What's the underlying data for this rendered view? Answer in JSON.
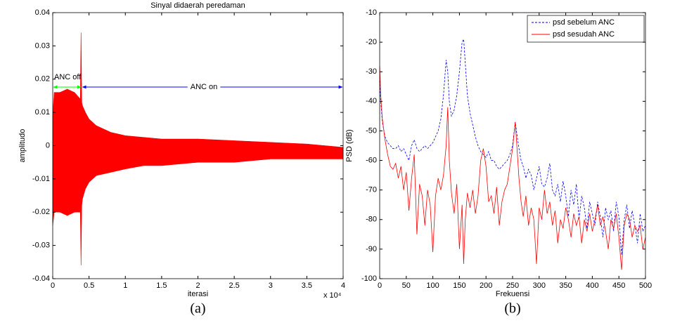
{
  "chart_data": [
    {
      "type": "band",
      "title": "Sinyal didaerah peredaman",
      "x_label": "iterasi",
      "y_label": "amplitudo",
      "x_multiplier": "x 10⁴",
      "caption": "(a)",
      "color": "#ff0000",
      "x": [
        0,
        0.02,
        0.1,
        0.2,
        0.3,
        0.38,
        0.39,
        0.4,
        0.41,
        0.45,
        0.5,
        0.6,
        0.8,
        1.0,
        1.25,
        1.5,
        2,
        2.5,
        3,
        3.5,
        4
      ],
      "upper": [
        0.009,
        0.016,
        0.016,
        0.017,
        0.016,
        0.014,
        0.034,
        0.013,
        0.012,
        0.01,
        0.008,
        0.006,
        0.004,
        0.003,
        0.0025,
        0.002,
        0.002,
        0.0015,
        0.001,
        0.0005,
        -0.0005
      ],
      "lower": [
        -0.024,
        -0.02,
        -0.02,
        -0.021,
        -0.02,
        -0.02,
        -0.036,
        -0.018,
        -0.016,
        -0.013,
        -0.011,
        -0.009,
        -0.008,
        -0.007,
        -0.006,
        -0.006,
        -0.005,
        -0.005,
        -0.004,
        -0.004,
        -0.004
      ],
      "annotations": [
        {
          "text": "ANC off",
          "color": "#00ff00"
        },
        {
          "text": "ANC on",
          "color": "#0000ff"
        }
      ],
      "xlim": [
        0,
        4
      ],
      "xticks": [
        0,
        0.5,
        1,
        1.5,
        2,
        2.5,
        3,
        3.5,
        4
      ],
      "ylim": [
        -0.04,
        0.04
      ],
      "yticks": [
        -0.04,
        -0.03,
        -0.02,
        -0.01,
        0,
        0.01,
        0.02,
        0.03,
        0.04
      ]
    },
    {
      "type": "line",
      "x_label": "Frekuensi",
      "y_label": "PSD (dB)",
      "caption": "(b)",
      "legend": "upper right",
      "x": [
        0,
        2,
        5,
        10,
        15,
        20,
        25,
        30,
        35,
        40,
        45,
        50,
        55,
        60,
        65,
        70,
        75,
        80,
        85,
        90,
        95,
        100,
        105,
        110,
        115,
        120,
        125,
        128,
        131,
        135,
        140,
        145,
        150,
        155,
        158,
        161,
        165,
        170,
        175,
        180,
        185,
        190,
        195,
        200,
        205,
        210,
        215,
        220,
        225,
        230,
        235,
        240,
        245,
        250,
        255,
        258,
        262,
        266,
        270,
        275,
        280,
        285,
        290,
        295,
        300,
        305,
        310,
        315,
        320,
        325,
        330,
        335,
        340,
        345,
        350,
        355,
        360,
        365,
        370,
        375,
        380,
        385,
        390,
        395,
        400,
        405,
        410,
        415,
        420,
        425,
        430,
        435,
        440,
        445,
        450,
        455,
        460,
        465,
        470,
        475,
        480,
        485,
        490,
        495,
        500
      ],
      "series": [
        {
          "name": "psd sebelum ANC",
          "color": "#0000ff",
          "linestyle": "dashed",
          "values": [
            -33,
            -40,
            -47,
            -52,
            -54,
            -55,
            -56,
            -56,
            -55,
            -57,
            -56,
            -58,
            -60,
            -55,
            -53,
            -56,
            -57,
            -56,
            -55,
            -56,
            -55,
            -54,
            -52,
            -50,
            -46,
            -38,
            -26,
            -30,
            -40,
            -45,
            -43,
            -38,
            -30,
            -20,
            -19,
            -27,
            -38,
            -44,
            -48,
            -52,
            -55,
            -57,
            -58,
            -59,
            -57,
            -60,
            -60,
            -62,
            -63,
            -62,
            -61,
            -60,
            -58,
            -55,
            -47,
            -51,
            -56,
            -60,
            -62,
            -66,
            -63,
            -65,
            -70,
            -66,
            -62,
            -68,
            -69,
            -66,
            -61,
            -70,
            -72,
            -68,
            -74,
            -67,
            -72,
            -79,
            -70,
            -75,
            -68,
            -80,
            -72,
            -76,
            -83,
            -74,
            -78,
            -82,
            -74,
            -79,
            -86,
            -76,
            -80,
            -77,
            -84,
            -74,
            -79,
            -92,
            -80,
            -75,
            -83,
            -77,
            -82,
            -88,
            -78,
            -84,
            -82
          ]
        },
        {
          "name": "psd sesudah ANC",
          "color": "#ff0000",
          "linestyle": "solid",
          "values": [
            -28,
            -38,
            -46,
            -53,
            -58,
            -62,
            -63,
            -61,
            -66,
            -62,
            -70,
            -64,
            -77,
            -66,
            -58,
            -85,
            -68,
            -72,
            -82,
            -70,
            -75,
            -91,
            -72,
            -66,
            -70,
            -65,
            -55,
            -42,
            -60,
            -71,
            -78,
            -68,
            -90,
            -75,
            -95,
            -80,
            -71,
            -76,
            -70,
            -78,
            -72,
            -60,
            -56,
            -62,
            -74,
            -72,
            -78,
            -69,
            -82,
            -74,
            -70,
            -68,
            -62,
            -56,
            -47,
            -55,
            -66,
            -74,
            -79,
            -72,
            -82,
            -76,
            -80,
            -95,
            -76,
            -80,
            -70,
            -78,
            -74,
            -82,
            -77,
            -88,
            -80,
            -83,
            -76,
            -80,
            -86,
            -78,
            -82,
            -79,
            -88,
            -80,
            -84,
            -78,
            -84,
            -80,
            -75,
            -82,
            -79,
            -84,
            -90,
            -80,
            -83,
            -78,
            -86,
            -97,
            -82,
            -78,
            -80,
            -86,
            -82,
            -84,
            -82,
            -90,
            -86
          ]
        }
      ],
      "xlim": [
        0,
        500
      ],
      "xticks": [
        0,
        50,
        100,
        150,
        200,
        250,
        300,
        350,
        400,
        450,
        500
      ],
      "ylim": [
        -100,
        -10
      ],
      "yticks": [
        -100,
        -90,
        -80,
        -70,
        -60,
        -50,
        -40,
        -30,
        -20,
        -10
      ]
    }
  ]
}
